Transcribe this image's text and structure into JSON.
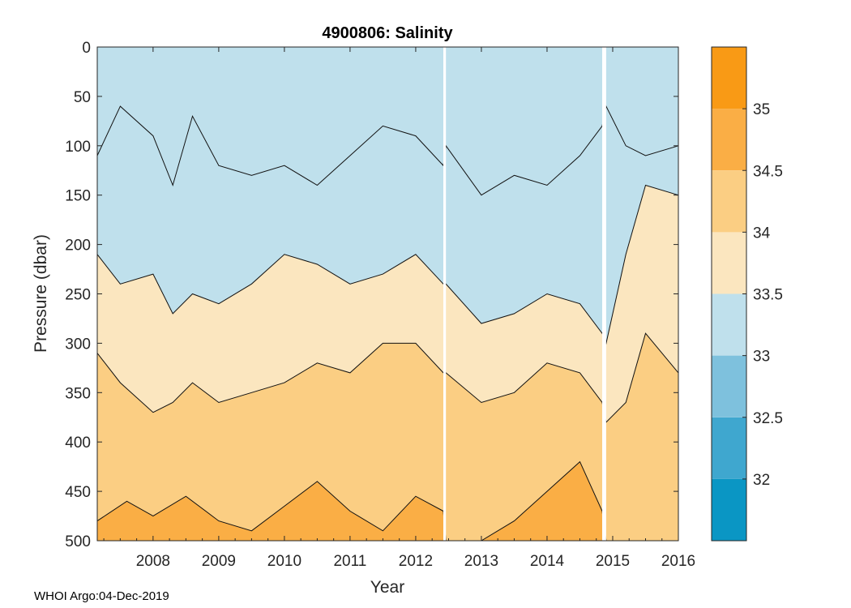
{
  "chart_data": {
    "type": "heatmap",
    "title": "4900806:  Salinity",
    "xlabel": "Year",
    "ylabel": "Pressure (dbar)",
    "x_range": [
      2007.15,
      2016.0
    ],
    "y_range": [
      0,
      500
    ],
    "x_ticks": [
      2008,
      2009,
      2010,
      2011,
      2012,
      2013,
      2014,
      2015,
      2016
    ],
    "x_tick_labels": [
      "2008",
      "2009",
      "2010",
      "2011",
      "2012",
      "2013",
      "2014",
      "2015",
      "2016"
    ],
    "y_ticks": [
      0,
      50,
      100,
      150,
      200,
      250,
      300,
      350,
      400,
      450,
      500
    ],
    "y_tick_labels": [
      "0",
      "50",
      "100",
      "150",
      "200",
      "250",
      "300",
      "350",
      "400",
      "450",
      "500"
    ],
    "data_gaps": [
      [
        2012.42,
        2012.46
      ],
      [
        2014.84,
        2014.9
      ]
    ],
    "colorbar": {
      "range": [
        31.5,
        35.5
      ],
      "levels": [
        {
          "from": 31.5,
          "to": 32.0,
          "color": "#0a96c4"
        },
        {
          "from": 32.0,
          "to": 32.5,
          "color": "#3fa7cf"
        },
        {
          "from": 32.5,
          "to": 33.0,
          "color": "#7ec1dd"
        },
        {
          "from": 33.0,
          "to": 33.5,
          "color": "#bfe0ec"
        },
        {
          "from": 33.5,
          "to": 34.0,
          "color": "#fbe6bf"
        },
        {
          "from": 34.0,
          "to": 34.5,
          "color": "#fbce83"
        },
        {
          "from": 34.5,
          "to": 35.0,
          "color": "#faae45"
        },
        {
          "from": 35.0,
          "to": 35.5,
          "color": "#f99a15"
        }
      ],
      "ticks": [
        32,
        32.5,
        33,
        33.5,
        34,
        34.5,
        35
      ],
      "tick_labels": [
        "32",
        "32.5",
        "33",
        "33.5",
        "34",
        "34.5",
        "35"
      ]
    },
    "contour_depths": [
      {
        "level": 33.0,
        "points": [
          [
            2007.15,
            110
          ],
          [
            2007.5,
            60
          ],
          [
            2008.0,
            90
          ],
          [
            2008.3,
            140
          ],
          [
            2008.6,
            70
          ],
          [
            2009.0,
            120
          ],
          [
            2009.5,
            130
          ],
          [
            2010.0,
            120
          ],
          [
            2010.5,
            140
          ],
          [
            2011.0,
            110
          ],
          [
            2011.5,
            80
          ],
          [
            2012.0,
            90
          ],
          [
            2012.42,
            120
          ],
          [
            2012.46,
            100
          ],
          [
            2013.0,
            150
          ],
          [
            2013.5,
            130
          ],
          [
            2014.0,
            140
          ],
          [
            2014.5,
            110
          ],
          [
            2014.84,
            80
          ],
          [
            2014.9,
            60
          ],
          [
            2015.2,
            100
          ],
          [
            2015.5,
            110
          ],
          [
            2016.0,
            100
          ]
        ]
      },
      {
        "level": 33.5,
        "points": [
          [
            2007.15,
            210
          ],
          [
            2007.5,
            240
          ],
          [
            2008.0,
            230
          ],
          [
            2008.3,
            270
          ],
          [
            2008.6,
            250
          ],
          [
            2009.0,
            260
          ],
          [
            2009.5,
            240
          ],
          [
            2010.0,
            210
          ],
          [
            2010.5,
            220
          ],
          [
            2011.0,
            240
          ],
          [
            2011.5,
            230
          ],
          [
            2012.0,
            210
          ],
          [
            2012.42,
            240
          ],
          [
            2012.46,
            240
          ],
          [
            2013.0,
            280
          ],
          [
            2013.5,
            270
          ],
          [
            2014.0,
            250
          ],
          [
            2014.5,
            260
          ],
          [
            2014.84,
            290
          ],
          [
            2014.9,
            300
          ],
          [
            2015.2,
            210
          ],
          [
            2015.5,
            140
          ],
          [
            2016.0,
            150
          ]
        ]
      },
      {
        "level": 34.0,
        "points": [
          [
            2007.15,
            310
          ],
          [
            2007.5,
            340
          ],
          [
            2008.0,
            370
          ],
          [
            2008.3,
            360
          ],
          [
            2008.6,
            340
          ],
          [
            2009.0,
            360
          ],
          [
            2009.5,
            350
          ],
          [
            2010.0,
            340
          ],
          [
            2010.5,
            320
          ],
          [
            2011.0,
            330
          ],
          [
            2011.5,
            300
          ],
          [
            2012.0,
            300
          ],
          [
            2012.42,
            330
          ],
          [
            2012.46,
            330
          ],
          [
            2013.0,
            360
          ],
          [
            2013.5,
            350
          ],
          [
            2014.0,
            320
          ],
          [
            2014.5,
            330
          ],
          [
            2014.84,
            360
          ],
          [
            2014.9,
            380
          ],
          [
            2015.2,
            360
          ],
          [
            2015.5,
            290
          ],
          [
            2016.0,
            330
          ]
        ]
      },
      {
        "level": 34.5,
        "points": [
          [
            2007.15,
            480
          ],
          [
            2007.6,
            460
          ],
          [
            2008.0,
            475
          ],
          [
            2008.5,
            455
          ],
          [
            2009.0,
            480
          ],
          [
            2009.5,
            490
          ],
          [
            2010.0,
            465
          ],
          [
            2010.5,
            440
          ],
          [
            2011.0,
            470
          ],
          [
            2011.5,
            490
          ],
          [
            2012.0,
            455
          ],
          [
            2012.42,
            470
          ],
          [
            2012.46,
            500
          ],
          [
            2013.0,
            500
          ],
          [
            2013.5,
            480
          ],
          [
            2014.0,
            450
          ],
          [
            2014.5,
            420
          ],
          [
            2014.84,
            470
          ],
          [
            2014.9,
            500
          ],
          [
            2015.2,
            500
          ],
          [
            2016.0,
            500
          ]
        ]
      }
    ]
  },
  "footer": "WHOI Argo:04-Dec-2019"
}
